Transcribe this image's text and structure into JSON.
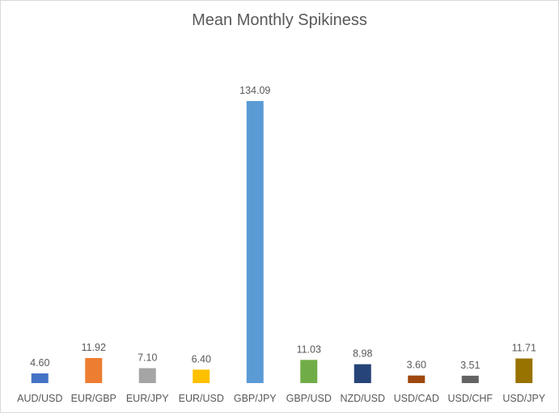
{
  "chart_data": {
    "type": "bar",
    "title": "Mean Monthly Spikiness",
    "xlabel": "",
    "ylabel": "",
    "categories": [
      "AUD/USD",
      "EUR/GBP",
      "EUR/JPY",
      "EUR/USD",
      "GBP/JPY",
      "GBP/USD",
      "NZD/USD",
      "USD/CAD",
      "USD/CHF",
      "USD/JPY"
    ],
    "values": [
      4.6,
      11.92,
      7.1,
      6.4,
      134.09,
      11.03,
      8.98,
      3.6,
      3.51,
      11.71
    ],
    "data_labels": [
      "4.60",
      "11.92",
      "7.10",
      "6.40",
      "134.09",
      "11.03",
      "8.98",
      "3.60",
      "3.51",
      "11.71"
    ],
    "colors": [
      "#4472C4",
      "#ED7D31",
      "#A5A5A5",
      "#FFC000",
      "#5B9BD5",
      "#70AD47",
      "#264478",
      "#9E480E",
      "#636363",
      "#997300"
    ],
    "ylim": [
      0,
      134.09
    ],
    "grid": false,
    "legend": "none"
  }
}
